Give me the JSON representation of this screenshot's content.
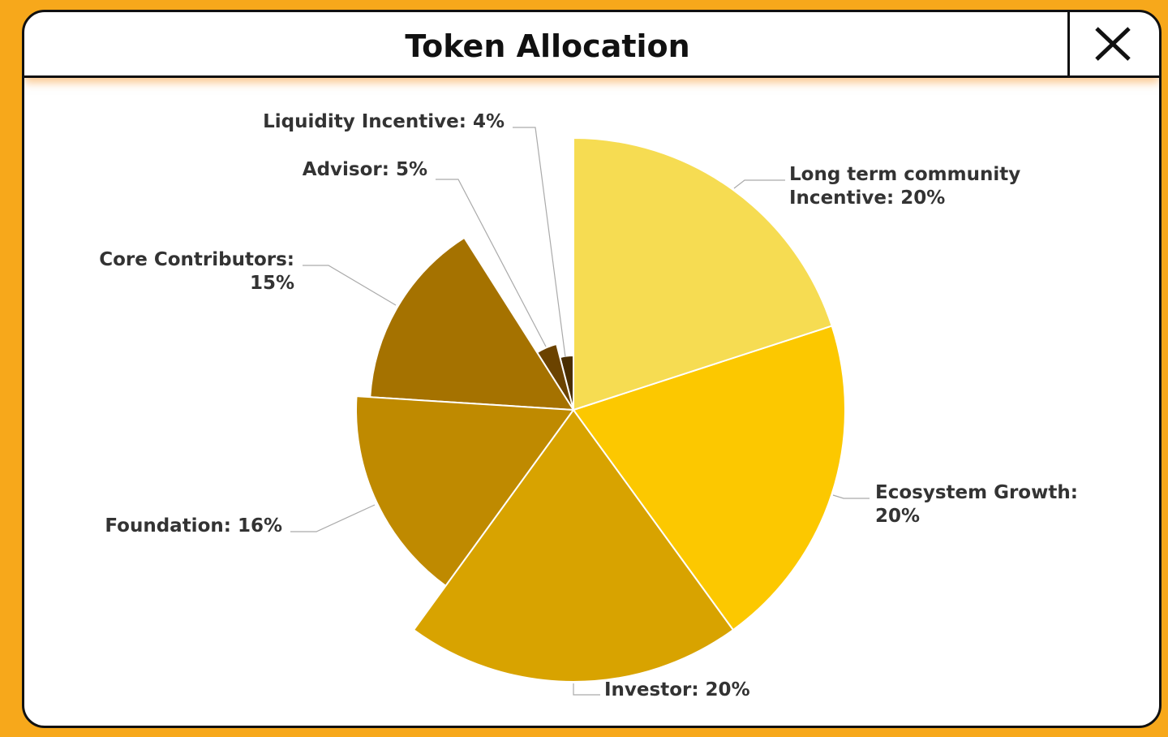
{
  "chart_data": {
    "type": "pie",
    "title": "Token Allocation",
    "categories": [
      "Long term community Incentive: 20%",
      "Ecosystem Growth: 20%",
      "Investor: 20%",
      "Foundation: 16%",
      "Core Contributors: 15%",
      "Advisor: 5%",
      "Liquidity Incentive: 4%"
    ],
    "values": [
      20,
      20,
      20,
      16,
      15,
      5,
      4
    ],
    "colors": [
      "#f6dc52",
      "#fcc800",
      "#d8a300",
      "#bf8a00",
      "#a57200",
      "#6b4300",
      "#4a2e00"
    ]
  }
}
